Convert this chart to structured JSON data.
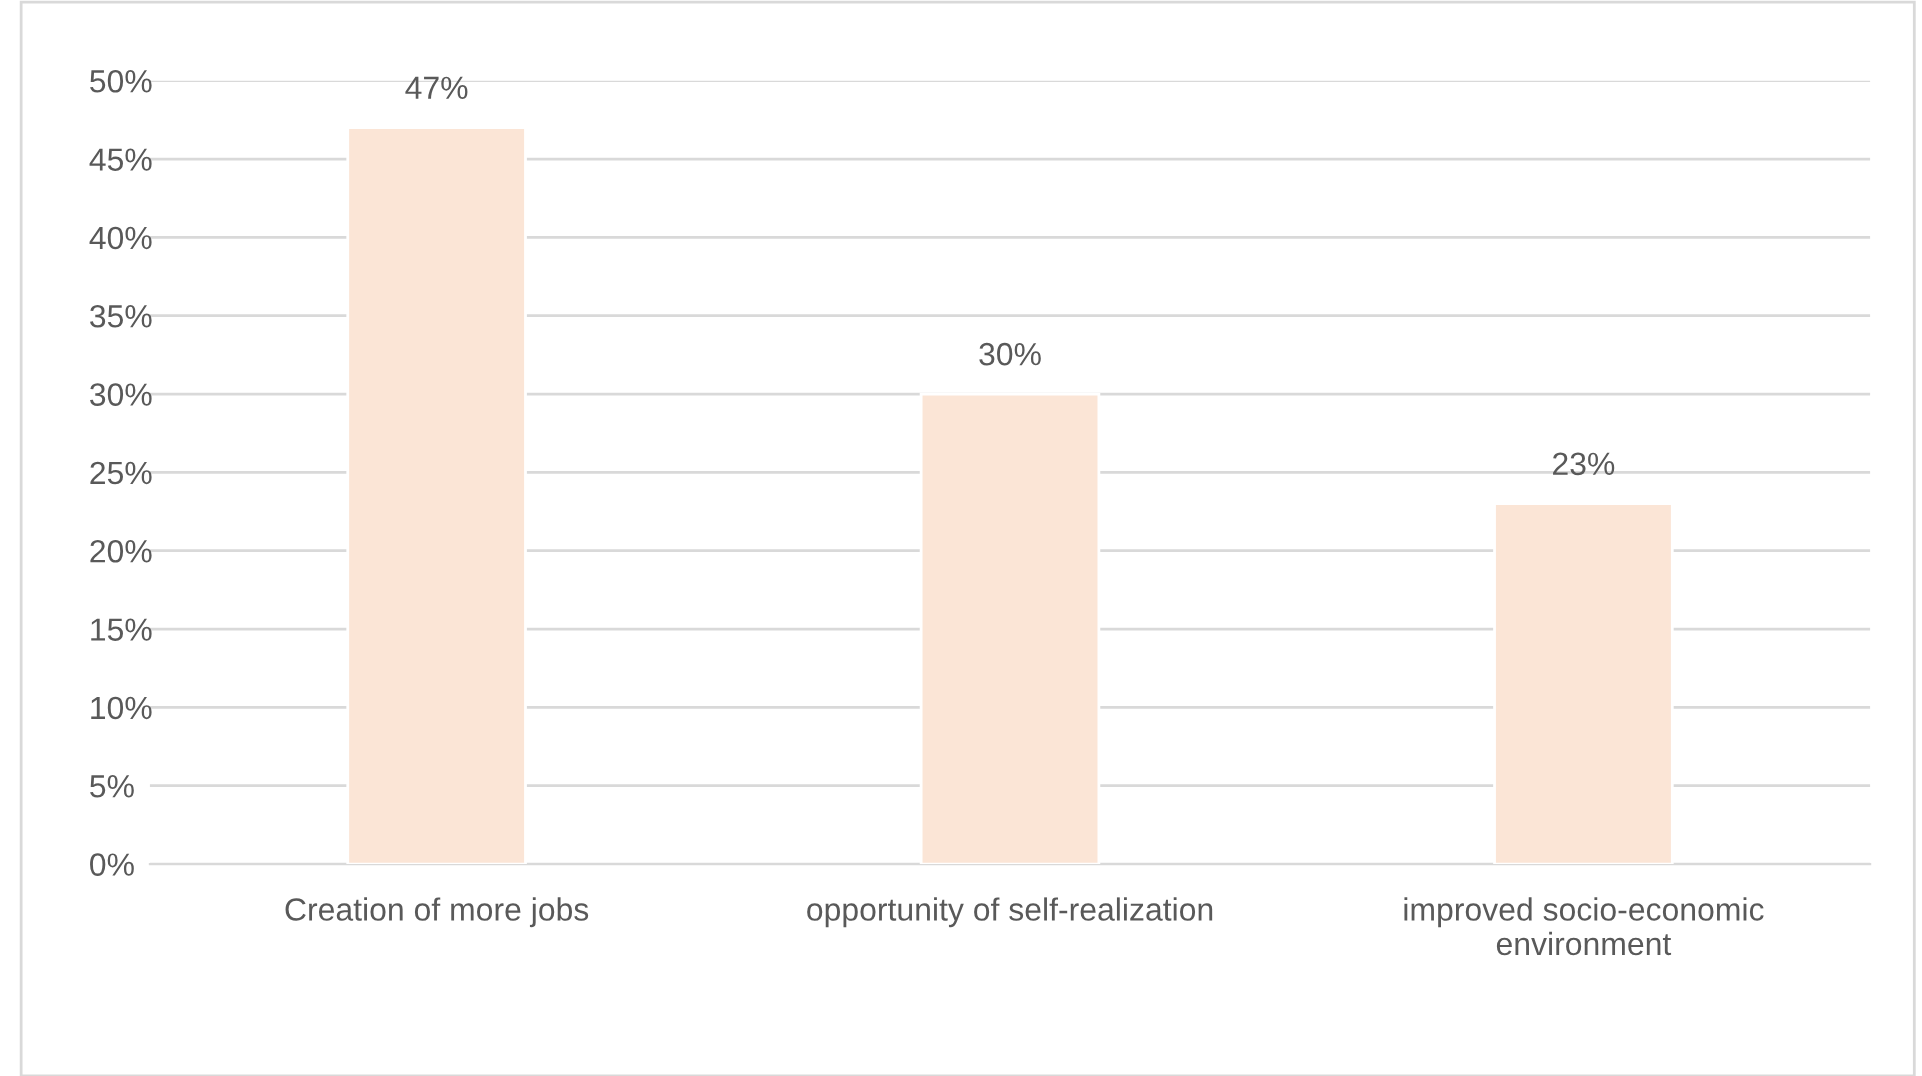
{
  "chart_data": {
    "type": "bar",
    "categories": [
      "Creation of more jobs",
      "opportunity of self-realization",
      "improved socio-economic\nenvironment"
    ],
    "values": [
      47,
      30,
      23
    ],
    "value_labels": [
      "47%",
      "30%",
      "23%"
    ],
    "color": "#fbe5d6",
    "ylim": [
      0,
      50
    ],
    "yticks": [
      {
        "value": 0,
        "label": "0%"
      },
      {
        "value": 5,
        "label": "5%"
      },
      {
        "value": 10,
        "label": "10%"
      },
      {
        "value": 15,
        "label": "15%"
      },
      {
        "value": 20,
        "label": "20%"
      },
      {
        "value": 25,
        "label": "25%"
      },
      {
        "value": 30,
        "label": "30%"
      },
      {
        "value": 35,
        "label": "35%"
      },
      {
        "value": 40,
        "label": "40%"
      },
      {
        "value": 45,
        "label": "45%"
      },
      {
        "value": 50,
        "label": "50%"
      }
    ],
    "grid": "y",
    "legend": false
  }
}
